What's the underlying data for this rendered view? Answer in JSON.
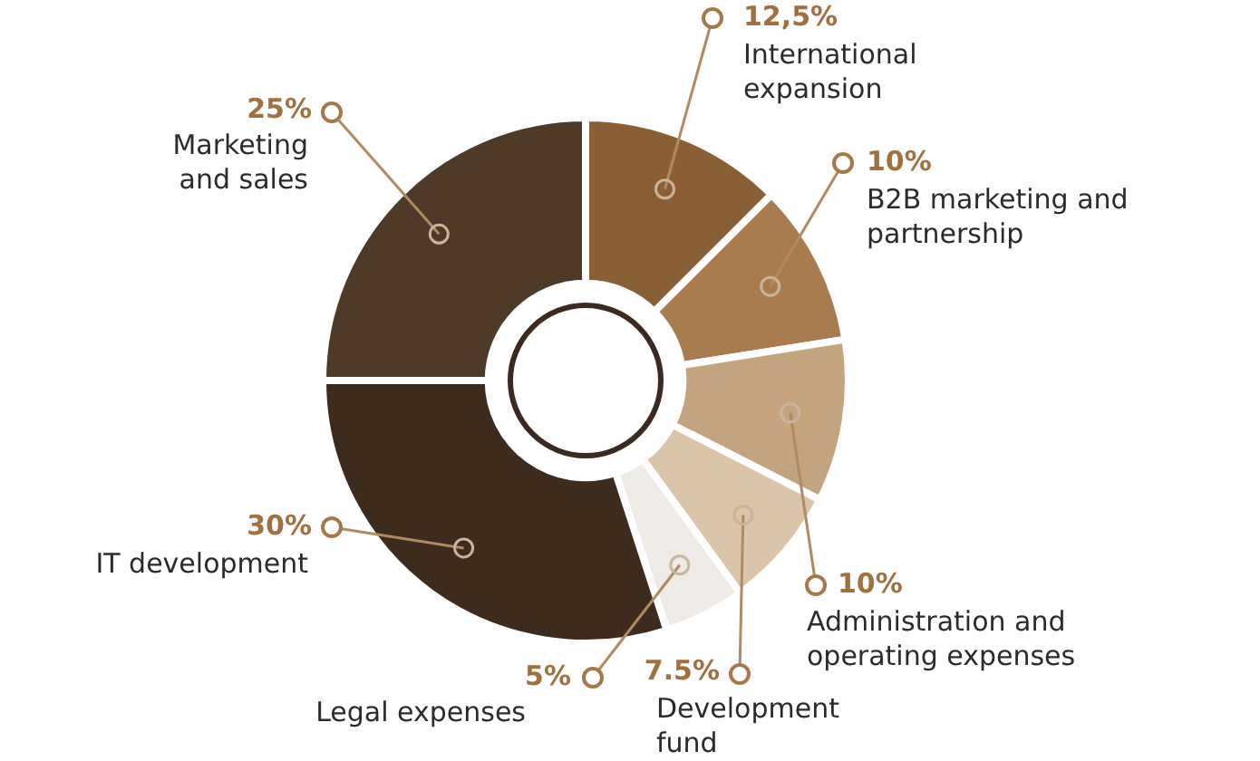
{
  "chart_data": {
    "type": "donut",
    "categories": [
      "International expansion",
      "B2B marketing and partnership",
      "Administration and operating expenses",
      "Development fund",
      "Legal expenses",
      "IT development",
      "Marketing and sales"
    ],
    "values": [
      12.5,
      10,
      10,
      7.5,
      5,
      30,
      25
    ],
    "value_labels": [
      "12,5%",
      "10%",
      "10%",
      "7.5%",
      "5%",
      "30%",
      "25%"
    ],
    "colors": [
      "#8a5f36",
      "#a87c4f",
      "#c4a47f",
      "#dac5a8",
      "#eeebe7",
      "#3d2b1e",
      "#4f3a28"
    ]
  }
}
